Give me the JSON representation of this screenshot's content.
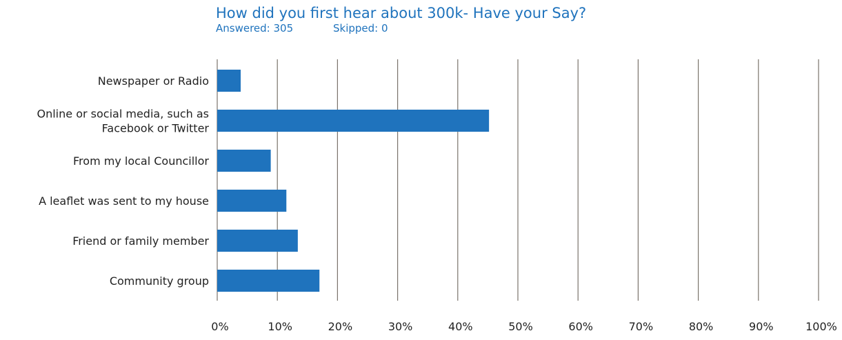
{
  "header": {
    "title": "How did you first hear about 300k- Have your Say?",
    "answered_label": "Answered: 305",
    "skipped_label": "Skipped: 0"
  },
  "colors": {
    "bar": "#1f73bd",
    "title": "#1f73bd",
    "grid": "#7a736b",
    "text": "#222222"
  },
  "chart_data": {
    "type": "bar",
    "orientation": "horizontal",
    "categories": [
      [
        "Newspaper or Radio"
      ],
      [
        "Online or social media, such as",
        "Facebook or Twitter"
      ],
      [
        "From my local Councillor"
      ],
      [
        "A leaflet was sent to my house"
      ],
      [
        "Friend or family member"
      ],
      [
        "Community group"
      ]
    ],
    "values": [
      3.9,
      45.2,
      8.9,
      11.5,
      13.4,
      17.0
    ],
    "xlim": [
      0,
      100
    ],
    "x_ticks": [
      0,
      10,
      20,
      30,
      40,
      50,
      60,
      70,
      80,
      90,
      100
    ],
    "x_tick_labels": [
      "0%",
      "10%",
      "20%",
      "30%",
      "40%",
      "50%",
      "60%",
      "70%",
      "80%",
      "90%",
      "100%"
    ],
    "grid": "vertical"
  }
}
